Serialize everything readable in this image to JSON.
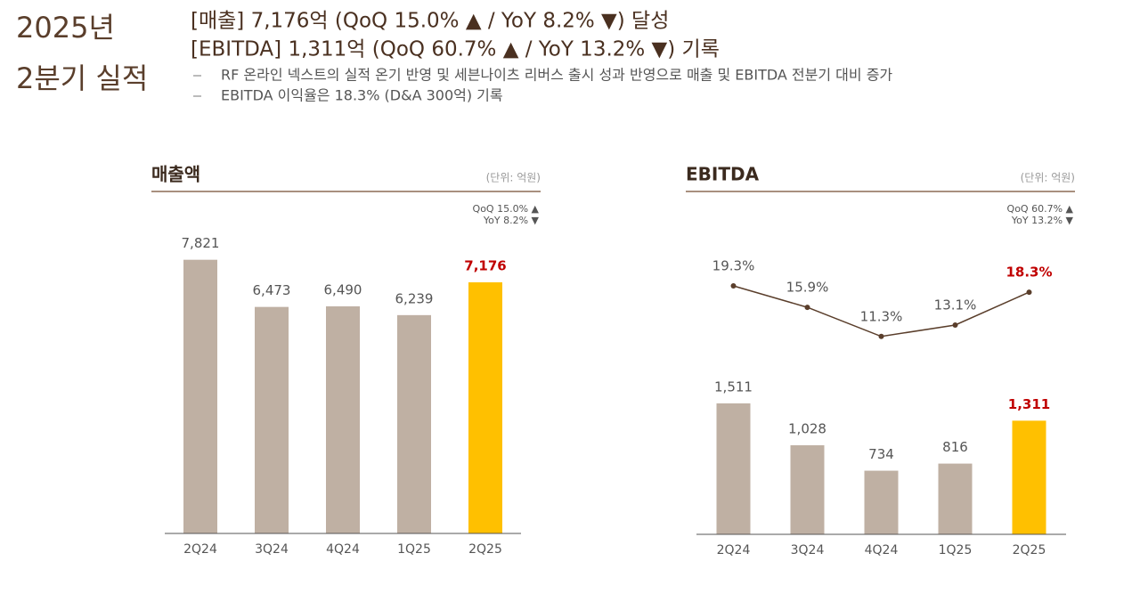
{
  "header": {
    "title_line1": "2025년",
    "title_line2": "2분기 실적",
    "headline1": "[매출] 7,176억 (QoQ 15.0% ▲ / YoY 8.2% ▼) 달성",
    "headline2": "[EBITDA] 1,311억 (QoQ 60.7% ▲ / YoY 13.2% ▼) 기록",
    "bullets": [
      "RF 온라인 넥스트의 실적 온기 반영 및 세븐나이츠 리버스 출시 성과 반영으로 매출 및 EBITDA 전분기 대비 증가",
      "EBITDA 이익율은 18.3% (D&A 300억) 기록"
    ]
  },
  "chart_data": [
    {
      "type": "bar",
      "title": "매출액",
      "unit": "(단위: 억원)",
      "qoq": "QoQ 15.0% ▲",
      "yoy": "YoY 8.2% ▼",
      "categories": [
        "2Q24",
        "3Q24",
        "4Q24",
        "1Q25",
        "2Q25"
      ],
      "values": [
        7821,
        6473,
        6490,
        6239,
        7176
      ],
      "value_labels": [
        "7,821",
        "6,473",
        "6,490",
        "6,239",
        "7,176"
      ],
      "colors": [
        "#bfb0a3",
        "#bfb0a3",
        "#bfb0a3",
        "#bfb0a3",
        "#ffc000"
      ],
      "label_colors": [
        "#555555",
        "#555555",
        "#555555",
        "#555555",
        "#c00000"
      ],
      "ylim": [
        0,
        8500
      ]
    },
    {
      "type": "bar_line",
      "title": "EBITDA",
      "unit": "(단위: 억원)",
      "qoq": "QoQ 60.7% ▲",
      "yoy": "YoY 13.2% ▼",
      "categories": [
        "2Q24",
        "3Q24",
        "4Q24",
        "1Q25",
        "2Q25"
      ],
      "values": [
        1511,
        1028,
        734,
        816,
        1311
      ],
      "value_labels": [
        "1,511",
        "1,028",
        "734",
        "816",
        "1,311"
      ],
      "colors": [
        "#bfb0a3",
        "#bfb0a3",
        "#bfb0a3",
        "#bfb0a3",
        "#ffc000"
      ],
      "label_colors": [
        "#555555",
        "#555555",
        "#555555",
        "#555555",
        "#c00000"
      ],
      "ylim": [
        0,
        3000
      ],
      "line_values": [
        19.3,
        15.9,
        11.3,
        13.1,
        18.3
      ],
      "line_value_labels": [
        "19.3%",
        "15.9%",
        "11.3%",
        "13.1%",
        "18.3%"
      ],
      "line_label_colors": [
        "#555555",
        "#555555",
        "#555555",
        "#555555",
        "#c00000"
      ],
      "line_color": "#5a3e2b",
      "y2lim": [
        0,
        30
      ]
    }
  ]
}
